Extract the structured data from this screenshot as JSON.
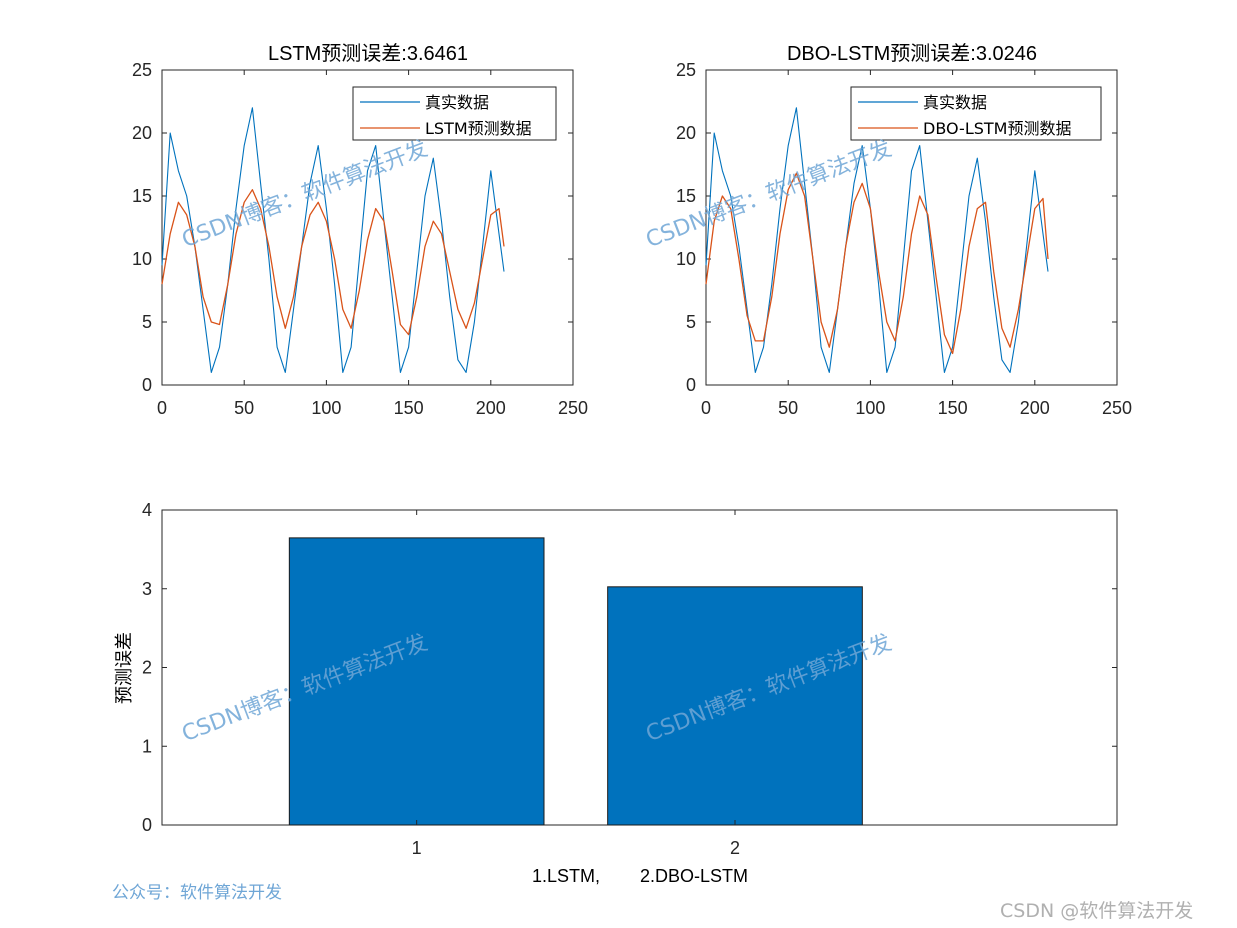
{
  "colors": {
    "actual": "#0072BD",
    "predicted": "#D95319",
    "bar": "#0072BD",
    "axis": "#262626",
    "watermark": "#6fa6d6"
  },
  "watermark_text": "CSDN博客：软件算法开发",
  "footer": {
    "left": "公众号：软件算法开发",
    "right": "CSDN @软件算法开发"
  },
  "chart_data": [
    {
      "type": "line",
      "title": "LSTM预测误差:3.6461",
      "xlabel": "",
      "ylabel": "",
      "xlim": [
        0,
        250
      ],
      "ylim": [
        0,
        25
      ],
      "xticks": [
        0,
        50,
        100,
        150,
        200,
        250
      ],
      "yticks": [
        0,
        5,
        10,
        15,
        20,
        25
      ],
      "legend": "top-right",
      "x": [
        0,
        5,
        10,
        15,
        20,
        25,
        30,
        35,
        40,
        45,
        50,
        55,
        60,
        65,
        70,
        75,
        80,
        85,
        90,
        95,
        100,
        105,
        110,
        115,
        120,
        125,
        130,
        135,
        140,
        145,
        150,
        155,
        160,
        165,
        170,
        175,
        180,
        185,
        190,
        195,
        200,
        205,
        208
      ],
      "series": [
        {
          "name": "真实数据",
          "color": "#0072BD",
          "values": [
            9.5,
            20,
            17,
            15,
            11,
            6,
            1,
            3,
            8,
            14,
            19,
            22,
            16,
            10,
            3,
            1,
            6,
            11,
            16,
            19,
            14,
            8,
            1,
            3,
            10,
            17,
            19,
            13,
            7,
            1,
            3,
            9,
            15,
            18,
            13,
            7,
            2,
            1,
            5,
            11,
            17,
            12,
            9
          ]
        },
        {
          "name": "LSTM预测数据",
          "color": "#D95319",
          "values": [
            8,
            12,
            14.5,
            13.5,
            11,
            7,
            5,
            4.8,
            8,
            12,
            14.5,
            15.5,
            14,
            11,
            7,
            4.5,
            7,
            11,
            13.5,
            14.5,
            13,
            10,
            6,
            4.5,
            7.5,
            11.5,
            14,
            13,
            9,
            4.8,
            4,
            7,
            11,
            13,
            12,
            9,
            6,
            4.5,
            6.5,
            10,
            13.5,
            14,
            11
          ]
        }
      ]
    },
    {
      "type": "line",
      "title": "DBO-LSTM预测误差:3.0246",
      "xlabel": "",
      "ylabel": "",
      "xlim": [
        0,
        250
      ],
      "ylim": [
        0,
        25
      ],
      "xticks": [
        0,
        50,
        100,
        150,
        200,
        250
      ],
      "yticks": [
        0,
        5,
        10,
        15,
        20,
        25
      ],
      "legend": "top-right",
      "x": [
        0,
        5,
        10,
        15,
        20,
        25,
        30,
        35,
        40,
        45,
        50,
        55,
        60,
        65,
        70,
        75,
        80,
        85,
        90,
        95,
        100,
        105,
        110,
        115,
        120,
        125,
        130,
        135,
        140,
        145,
        150,
        155,
        160,
        165,
        170,
        175,
        180,
        185,
        190,
        195,
        200,
        205,
        208
      ],
      "series": [
        {
          "name": "真实数据",
          "color": "#0072BD",
          "values": [
            9.5,
            20,
            17,
            15,
            11,
            6,
            1,
            3,
            8,
            14,
            19,
            22,
            16,
            10,
            3,
            1,
            6,
            11,
            16,
            19,
            14,
            8,
            1,
            3,
            10,
            17,
            19,
            13,
            7,
            1,
            3,
            9,
            15,
            18,
            13,
            7,
            2,
            1,
            5,
            11,
            17,
            12,
            9
          ]
        },
        {
          "name": "DBO-LSTM预测数据",
          "color": "#D95319",
          "values": [
            8,
            13,
            15,
            14,
            10,
            5.5,
            3.5,
            3.5,
            7,
            12,
            15.5,
            16.8,
            15,
            10,
            5,
            3,
            6,
            11,
            14.5,
            16,
            14,
            9,
            5,
            3.5,
            7,
            12,
            15,
            13.5,
            8.5,
            4,
            2.5,
            6,
            11,
            14,
            14.5,
            9,
            4.5,
            3,
            6,
            10,
            14,
            14.8,
            10
          ]
        }
      ]
    },
    {
      "type": "bar",
      "title": "",
      "categories": [
        "1",
        "2"
      ],
      "values": [
        3.6461,
        3.0246
      ],
      "xlabel": "1.LSTM,        2.DBO-LSTM",
      "ylabel": "预测误差",
      "xlim": [
        0.2,
        3.2
      ],
      "ylim": [
        0,
        4
      ],
      "yticks": [
        0,
        1,
        2,
        3,
        4
      ],
      "bar_width": 0.8,
      "grid": false
    }
  ]
}
